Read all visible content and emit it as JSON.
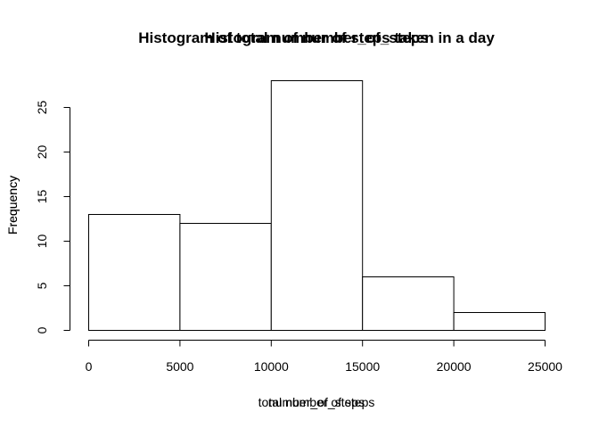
{
  "chart_data": {
    "type": "bar",
    "title_overlays": [
      "Histogram of total number of steps taken in a day",
      "Histogram of number_of_steps"
    ],
    "xlabel_overlays": [
      "total number of steps",
      "number_of_steps"
    ],
    "ylabel_overlays": [
      "Frequency",
      "Frequency"
    ],
    "bins": [
      {
        "from": 0,
        "to": 5000,
        "count": 13
      },
      {
        "from": 5000,
        "to": 10000,
        "count": 12
      },
      {
        "from": 10000,
        "to": 15000,
        "count": 28
      },
      {
        "from": 15000,
        "to": 20000,
        "count": 6
      },
      {
        "from": 20000,
        "to": 25000,
        "count": 2
      }
    ],
    "x_ticks": [
      0,
      5000,
      10000,
      15000,
      20000,
      25000
    ],
    "y_ticks": [
      0,
      5,
      10,
      15,
      20,
      25
    ],
    "xlim": [
      0,
      25000
    ],
    "ylim": [
      0,
      28
    ],
    "grid": false,
    "legend": "none"
  }
}
